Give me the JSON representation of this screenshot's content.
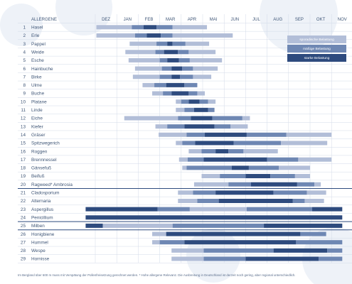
{
  "chart_data": {
    "type": "gantt",
    "title": "",
    "column_header": "ALLERGENE",
    "months": [
      "DEZ",
      "JAN",
      "FEB",
      "MAR",
      "APR",
      "MAI",
      "JUN",
      "JUL",
      "AUG",
      "SEP",
      "OKT",
      "NOV"
    ],
    "legend": {
      "placement": "right",
      "levels": [
        {
          "key": "light",
          "label": "sporadische Belastung",
          "color": "#b2bed8"
        },
        {
          "key": "medium",
          "label": "mäßige Belastung",
          "color": "#6e87b3"
        },
        {
          "key": "strong",
          "label": "starke Belastung",
          "color": "#2e4b7e"
        }
      ]
    },
    "rows": [
      {
        "num": "1",
        "name": "Hasel",
        "segments": [
          [
            0.05,
            1.7,
            "light"
          ],
          [
            1.7,
            2.25,
            "medium"
          ],
          [
            2.25,
            2.85,
            "strong"
          ],
          [
            2.85,
            3.6,
            "medium"
          ],
          [
            3.6,
            5.2,
            "light"
          ]
        ]
      },
      {
        "num": "2",
        "name": "Erle",
        "segments": [
          [
            0.05,
            1.85,
            "light"
          ],
          [
            1.85,
            2.4,
            "medium"
          ],
          [
            2.4,
            3.05,
            "strong"
          ],
          [
            3.05,
            3.6,
            "medium"
          ],
          [
            3.6,
            6.4,
            "light"
          ]
        ]
      },
      {
        "num": "3",
        "name": "Pappel",
        "segments": [
          [
            1.6,
            2.85,
            "light"
          ],
          [
            2.85,
            3.35,
            "medium"
          ],
          [
            3.35,
            3.6,
            "strong"
          ],
          [
            3.6,
            4.2,
            "medium"
          ],
          [
            4.2,
            5.3,
            "light"
          ]
        ]
      },
      {
        "num": "4",
        "name": "Weide",
        "segments": [
          [
            1.4,
            2.8,
            "light"
          ],
          [
            2.8,
            3.2,
            "medium"
          ],
          [
            3.2,
            3.85,
            "strong"
          ],
          [
            3.85,
            4.35,
            "medium"
          ],
          [
            4.35,
            5.6,
            "light"
          ]
        ]
      },
      {
        "num": "5",
        "name": "Esche",
        "segments": [
          [
            1.55,
            3.0,
            "light"
          ],
          [
            3.0,
            3.35,
            "medium"
          ],
          [
            3.35,
            3.9,
            "strong"
          ],
          [
            3.9,
            4.4,
            "medium"
          ],
          [
            4.4,
            5.9,
            "light"
          ]
        ]
      },
      {
        "num": "6",
        "name": "Hainbuche",
        "segments": [
          [
            1.85,
            3.1,
            "light"
          ],
          [
            3.1,
            3.55,
            "medium"
          ],
          [
            3.55,
            4.05,
            "strong"
          ],
          [
            4.05,
            4.55,
            "medium"
          ],
          [
            4.55,
            5.7,
            "light"
          ]
        ]
      },
      {
        "num": "7",
        "name": "Birke",
        "segments": [
          [
            1.75,
            3.0,
            "light"
          ],
          [
            3.0,
            3.55,
            "medium"
          ],
          [
            3.55,
            3.95,
            "strong"
          ],
          [
            3.95,
            4.55,
            "medium"
          ],
          [
            4.55,
            5.4,
            "light"
          ]
        ]
      },
      {
        "num": "8",
        "name": "Ulme",
        "segments": [
          [
            2.2,
            2.75,
            "light"
          ],
          [
            2.75,
            3.3,
            "medium"
          ],
          [
            3.3,
            4.15,
            "strong"
          ],
          [
            4.15,
            4.75,
            "medium"
          ]
        ]
      },
      {
        "num": "9",
        "name": "Buche",
        "segments": [
          [
            2.65,
            3.15,
            "light"
          ],
          [
            3.15,
            3.55,
            "medium"
          ],
          [
            3.55,
            4.35,
            "strong"
          ],
          [
            4.35,
            4.75,
            "medium"
          ],
          [
            4.75,
            5.1,
            "light"
          ]
        ]
      },
      {
        "num": "10",
        "name": "Platane",
        "segments": [
          [
            3.75,
            4.0,
            "light"
          ],
          [
            4.0,
            4.35,
            "medium"
          ],
          [
            4.35,
            4.85,
            "strong"
          ],
          [
            4.85,
            5.25,
            "medium"
          ],
          [
            5.25,
            5.6,
            "light"
          ]
        ]
      },
      {
        "num": "11",
        "name": "Linde",
        "segments": [
          [
            3.75,
            4.15,
            "light"
          ],
          [
            4.15,
            4.6,
            "medium"
          ],
          [
            4.6,
            5.25,
            "strong"
          ],
          [
            5.25,
            5.55,
            "medium"
          ]
        ]
      },
      {
        "num": "12",
        "name": "Eiche",
        "segments": [
          [
            1.35,
            3.85,
            "light"
          ],
          [
            3.85,
            4.45,
            "medium"
          ],
          [
            4.45,
            5.45,
            "strong"
          ],
          [
            5.45,
            6.85,
            "medium"
          ],
          [
            6.85,
            7.2,
            "light"
          ]
        ]
      },
      {
        "num": "13",
        "name": "Kiefer",
        "segments": [
          [
            2.8,
            3.35,
            "light"
          ],
          [
            3.35,
            4.15,
            "medium"
          ],
          [
            4.15,
            5.55,
            "strong"
          ],
          [
            5.55,
            6.3,
            "medium"
          ],
          [
            6.3,
            7.1,
            "light"
          ]
        ]
      },
      {
        "num": "14",
        "name": "Gräser",
        "segments": [
          [
            2.95,
            4.25,
            "light"
          ],
          [
            4.25,
            5.1,
            "medium"
          ],
          [
            5.1,
            7.05,
            "strong"
          ],
          [
            7.05,
            8.9,
            "medium"
          ],
          [
            8.9,
            11.0,
            "light"
          ]
        ]
      },
      {
        "num": "15",
        "name": "Spitzwegerich",
        "segments": [
          [
            3.75,
            4.05,
            "light"
          ],
          [
            4.05,
            4.65,
            "medium"
          ],
          [
            4.65,
            6.45,
            "strong"
          ],
          [
            6.45,
            8.65,
            "medium"
          ],
          [
            8.65,
            10.8,
            "light"
          ]
        ]
      },
      {
        "num": "16",
        "name": "Roggen",
        "segments": [
          [
            4.35,
            4.95,
            "light"
          ],
          [
            4.95,
            5.6,
            "medium"
          ],
          [
            5.6,
            6.2,
            "strong"
          ],
          [
            6.2,
            6.9,
            "medium"
          ],
          [
            6.9,
            8.5,
            "light"
          ]
        ]
      },
      {
        "num": "17",
        "name": "Brennnessel",
        "segments": [
          [
            3.9,
            4.3,
            "light"
          ],
          [
            4.3,
            5.05,
            "medium"
          ],
          [
            5.05,
            8.0,
            "strong"
          ],
          [
            8.0,
            9.45,
            "medium"
          ],
          [
            9.45,
            11.0,
            "light"
          ]
        ]
      },
      {
        "num": "18",
        "name": "Gänsefuß",
        "segments": [
          [
            4.05,
            4.25,
            "light"
          ],
          [
            4.25,
            6.35,
            "medium"
          ],
          [
            6.35,
            7.15,
            "strong"
          ],
          [
            7.15,
            8.55,
            "medium"
          ],
          [
            8.55,
            10.0,
            "light"
          ]
        ]
      },
      {
        "num": "19",
        "name": "Beifuß",
        "segments": [
          [
            4.95,
            5.8,
            "light"
          ],
          [
            5.8,
            7.0,
            "medium"
          ],
          [
            7.0,
            8.15,
            "strong"
          ],
          [
            8.15,
            9.3,
            "medium"
          ],
          [
            9.3,
            10.0,
            "light"
          ]
        ]
      },
      {
        "num": "20",
        "name": "Ragweed* Ambrosia",
        "segments": [
          [
            4.6,
            6.2,
            "light"
          ],
          [
            6.2,
            7.25,
            "medium"
          ],
          [
            7.25,
            9.4,
            "strong"
          ],
          [
            9.4,
            10.2,
            "medium"
          ],
          [
            10.2,
            10.5,
            "light"
          ]
        ]
      },
      {
        "num": "21",
        "name": "Cladosporium",
        "segments": [
          [
            3.85,
            4.55,
            "light"
          ],
          [
            4.55,
            5.6,
            "medium"
          ],
          [
            5.6,
            8.3,
            "strong"
          ],
          [
            8.3,
            9.85,
            "medium"
          ],
          [
            9.85,
            10.75,
            "light"
          ]
        ]
      },
      {
        "num": "22",
        "name": "Alternaria",
        "segments": [
          [
            3.85,
            4.75,
            "light"
          ],
          [
            4.75,
            5.75,
            "medium"
          ],
          [
            5.75,
            9.2,
            "strong"
          ],
          [
            9.2,
            9.75,
            "medium"
          ],
          [
            9.75,
            10.65,
            "light"
          ]
        ]
      },
      {
        "num": "23",
        "name": "Aspergillus",
        "segments": [
          [
            -0.45,
            2.9,
            "strong"
          ],
          [
            2.9,
            4.4,
            "medium"
          ],
          [
            4.4,
            7.05,
            "light"
          ],
          [
            7.05,
            10.1,
            "medium"
          ],
          [
            10.1,
            11.5,
            "strong"
          ]
        ]
      },
      {
        "num": "24",
        "name": "Penicillium",
        "segments": [
          [
            -0.45,
            11.5,
            "strong"
          ]
        ]
      },
      {
        "num": "25",
        "name": "Milben",
        "segments": [
          [
            -0.45,
            0.35,
            "strong"
          ],
          [
            0.35,
            3.6,
            "light"
          ],
          [
            3.6,
            7.85,
            "medium"
          ],
          [
            7.85,
            11.5,
            "strong"
          ]
        ]
      },
      {
        "num": "26",
        "name": "Honigbiene",
        "segments": [
          [
            2.65,
            3.3,
            "light"
          ],
          [
            3.3,
            9.55,
            "strong"
          ],
          [
            9.55,
            10.75,
            "medium"
          ]
        ]
      },
      {
        "num": "27",
        "name": "Hummel",
        "segments": [
          [
            2.65,
            3.0,
            "light"
          ],
          [
            3.0,
            4.15,
            "medium"
          ],
          [
            4.15,
            9.35,
            "strong"
          ],
          [
            9.35,
            11.5,
            "medium"
          ]
        ]
      },
      {
        "num": "28",
        "name": "Wespe",
        "segments": [
          [
            3.55,
            5.05,
            "light"
          ],
          [
            5.05,
            8.3,
            "medium"
          ],
          [
            8.3,
            10.8,
            "strong"
          ],
          [
            10.8,
            11.5,
            "medium"
          ]
        ]
      },
      {
        "num": "29",
        "name": "Hornisse",
        "segments": [
          [
            3.55,
            5.05,
            "light"
          ],
          [
            5.05,
            7.0,
            "medium"
          ],
          [
            7.0,
            10.4,
            "strong"
          ],
          [
            10.4,
            11.5,
            "medium"
          ]
        ]
      }
    ],
    "group_separators_after": [
      "20",
      "24",
      "25"
    ],
    "grid": true
  },
  "footnote": "Im Bergland über 600 m muss mit Verspätung der Pollenfreisetzung gerechnet werden. * Hohe allergene Relevanz. Die Ausbreitung in Deutschland ist derzeit noch gering, aber regional unterschiedlich."
}
